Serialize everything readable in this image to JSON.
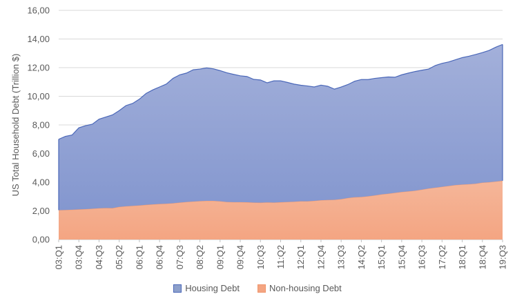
{
  "chart_data": {
    "type": "area",
    "stacked": true,
    "ylabel": "US Total Household Debt (Trillion $)",
    "xlabel": "",
    "ylim": [
      0,
      16
    ],
    "yticks": [
      "0,00",
      "2,00",
      "4,00",
      "6,00",
      "8,00",
      "10,00",
      "12,00",
      "14,00",
      "16,00"
    ],
    "ytick_values": [
      0,
      2,
      4,
      6,
      8,
      10,
      12,
      14,
      16
    ],
    "grid": "horizontal",
    "legend_position": "bottom",
    "x_tick_labels": [
      "03:Q1",
      "03:Q4",
      "04:Q3",
      "05:Q2",
      "06:Q1",
      "06:Q4",
      "07:Q3",
      "08:Q2",
      "09:Q1",
      "09:Q4",
      "10:Q3",
      "11:Q2",
      "12:Q1",
      "12:Q4",
      "13:Q3",
      "14:Q2",
      "15:Q1",
      "15:Q4",
      "16:Q3",
      "17:Q2",
      "18:Q1",
      "18:Q4",
      "19:Q3"
    ],
    "x": [
      "03:Q1",
      "03:Q2",
      "03:Q3",
      "03:Q4",
      "04:Q1",
      "04:Q2",
      "04:Q3",
      "04:Q4",
      "05:Q1",
      "05:Q2",
      "05:Q3",
      "05:Q4",
      "06:Q1",
      "06:Q2",
      "06:Q3",
      "06:Q4",
      "07:Q1",
      "07:Q2",
      "07:Q3",
      "07:Q4",
      "08:Q1",
      "08:Q2",
      "08:Q3",
      "08:Q4",
      "09:Q1",
      "09:Q2",
      "09:Q3",
      "09:Q4",
      "10:Q1",
      "10:Q2",
      "10:Q3",
      "10:Q4",
      "11:Q1",
      "11:Q2",
      "11:Q3",
      "11:Q4",
      "12:Q1",
      "12:Q2",
      "12:Q3",
      "12:Q4",
      "13:Q1",
      "13:Q2",
      "13:Q3",
      "13:Q4",
      "14:Q1",
      "14:Q2",
      "14:Q3",
      "14:Q4",
      "15:Q1",
      "15:Q2",
      "15:Q3",
      "15:Q4",
      "16:Q1",
      "16:Q2",
      "16:Q3",
      "16:Q4",
      "17:Q1",
      "17:Q2",
      "17:Q3",
      "17:Q4",
      "18:Q1",
      "18:Q2",
      "18:Q3",
      "18:Q4",
      "19:Q1",
      "19:Q2",
      "19:Q3"
    ],
    "series": [
      {
        "name": "Non-housing Debt",
        "color": "#f4a582",
        "values": [
          2.05,
          2.06,
          2.08,
          2.1,
          2.12,
          2.15,
          2.18,
          2.2,
          2.19,
          2.28,
          2.32,
          2.35,
          2.38,
          2.42,
          2.45,
          2.48,
          2.5,
          2.53,
          2.58,
          2.62,
          2.65,
          2.68,
          2.7,
          2.7,
          2.67,
          2.62,
          2.61,
          2.61,
          2.6,
          2.58,
          2.57,
          2.59,
          2.58,
          2.6,
          2.62,
          2.64,
          2.67,
          2.67,
          2.7,
          2.74,
          2.76,
          2.77,
          2.82,
          2.9,
          2.95,
          2.97,
          3.02,
          3.08,
          3.15,
          3.2,
          3.26,
          3.32,
          3.36,
          3.41,
          3.48,
          3.56,
          3.62,
          3.68,
          3.74,
          3.8,
          3.84,
          3.86,
          3.9,
          3.97,
          4.0,
          4.05,
          4.1
        ]
      },
      {
        "name": "Housing Debt",
        "color": "#8da0cb",
        "values": [
          4.95,
          5.14,
          5.22,
          5.7,
          5.83,
          5.9,
          6.22,
          6.35,
          6.51,
          6.72,
          7.03,
          7.15,
          7.42,
          7.78,
          8.0,
          8.17,
          8.35,
          8.72,
          8.92,
          9.0,
          9.2,
          9.22,
          9.28,
          9.22,
          9.12,
          9.02,
          8.92,
          8.82,
          8.78,
          8.6,
          8.57,
          8.35,
          8.5,
          8.48,
          8.35,
          8.21,
          8.1,
          8.05,
          7.95,
          8.04,
          7.94,
          7.73,
          7.83,
          7.92,
          8.1,
          8.2,
          8.15,
          8.17,
          8.15,
          8.15,
          8.07,
          8.18,
          8.26,
          8.32,
          8.34,
          8.34,
          8.53,
          8.62,
          8.66,
          8.75,
          8.86,
          8.94,
          9.02,
          9.08,
          9.2,
          9.38,
          9.52
        ]
      }
    ]
  }
}
